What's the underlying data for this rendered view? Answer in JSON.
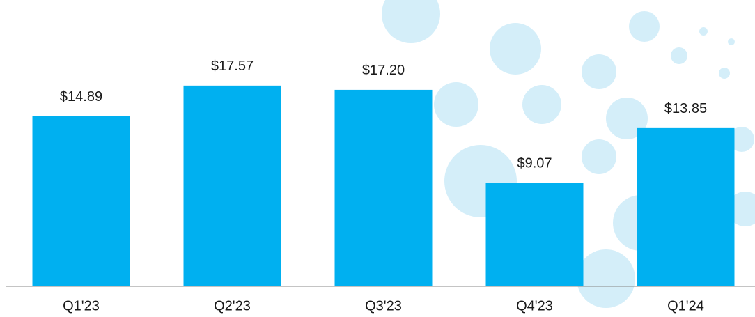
{
  "chart_data": {
    "type": "bar",
    "categories": [
      "Q1'23",
      "Q2'23",
      "Q3'23",
      "Q4'23",
      "Q1'24"
    ],
    "values": [
      14.89,
      17.57,
      17.2,
      9.07,
      13.85
    ],
    "value_labels": [
      "$14.89",
      "$17.57",
      "$17.20",
      "$9.07",
      "$13.85"
    ],
    "color": "#00b0f0",
    "ylim": [
      0,
      25
    ]
  }
}
